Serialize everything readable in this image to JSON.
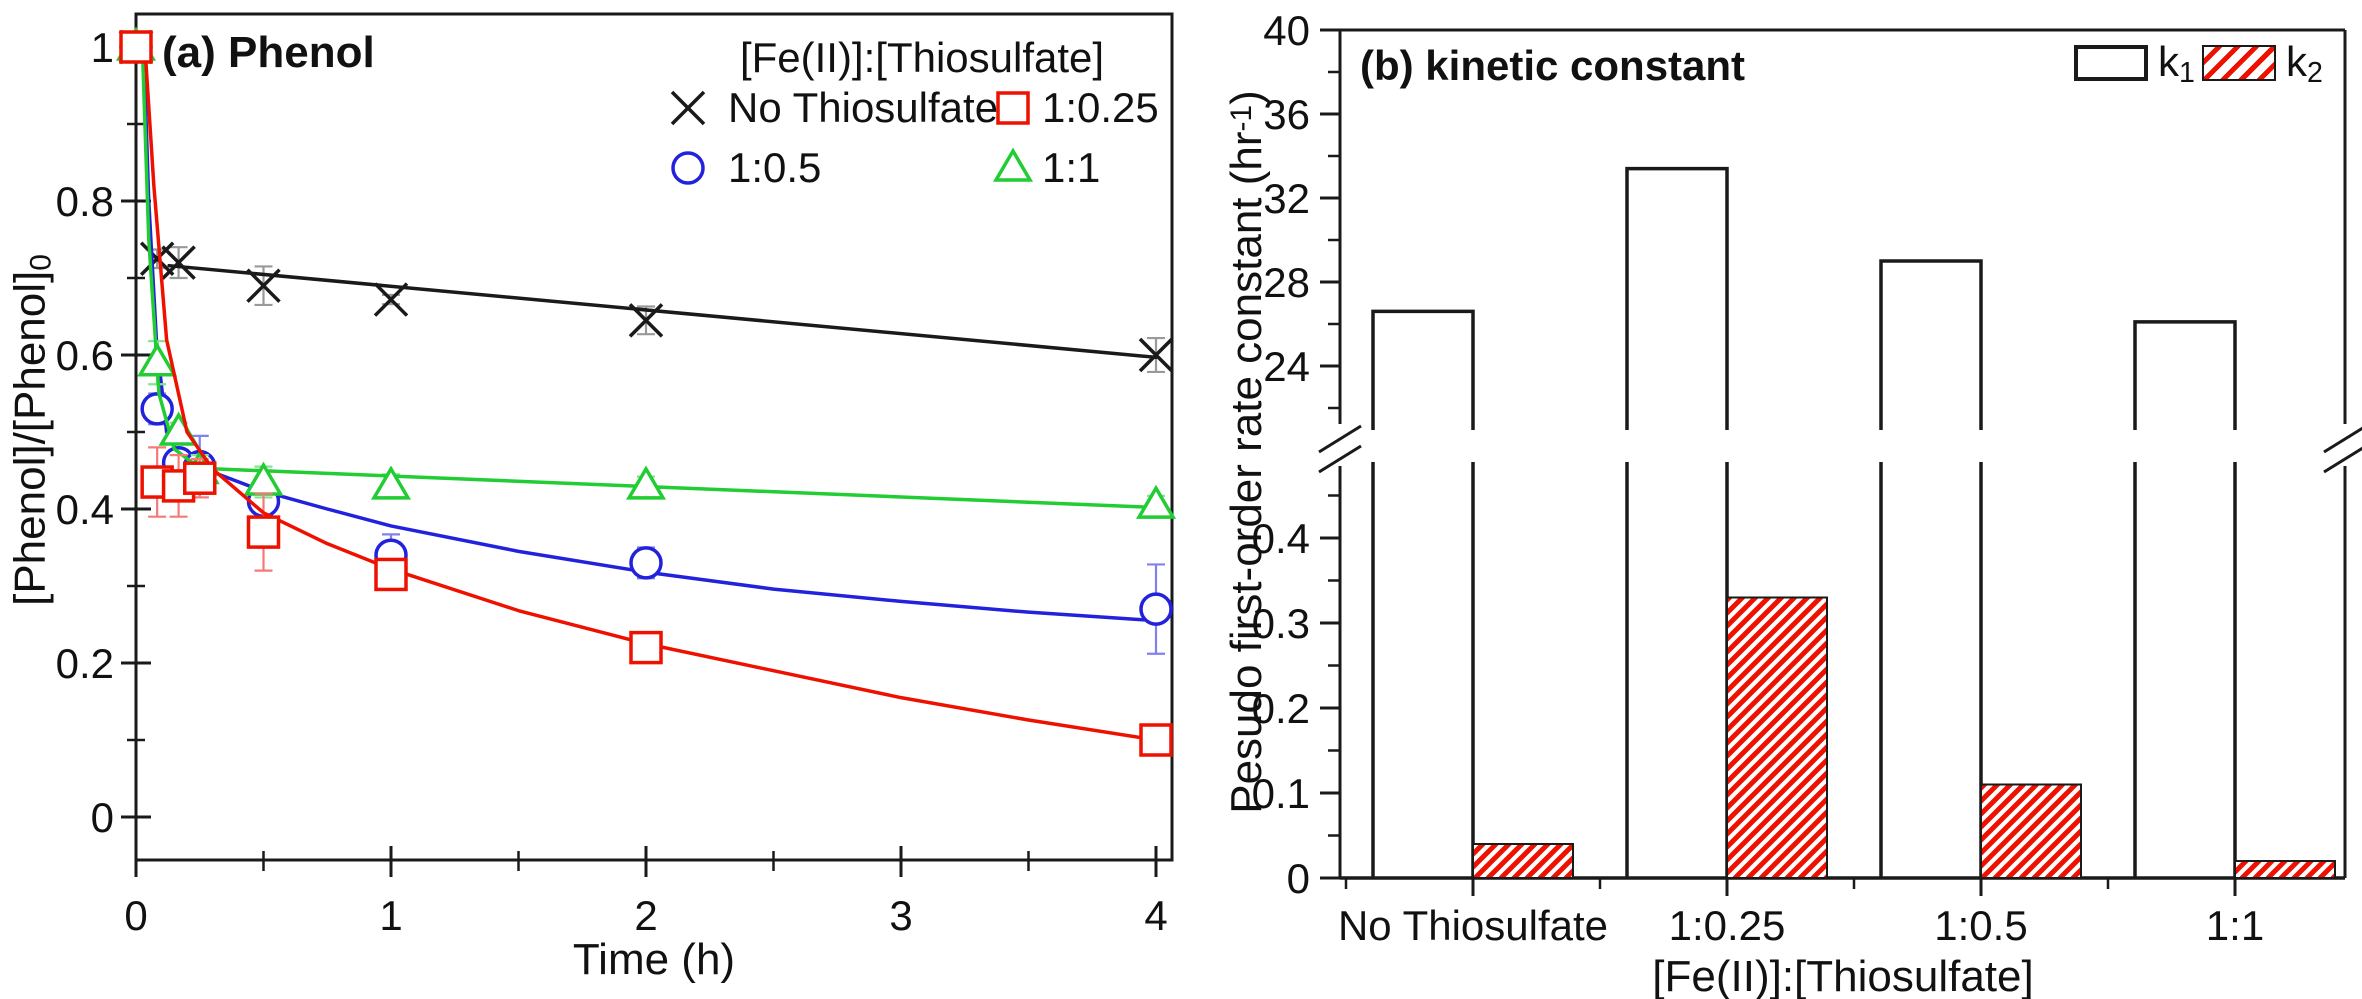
{
  "page": {
    "background": "#ffffff"
  },
  "panel_a": {
    "title": "(a) Phenol",
    "xlabel": "Time (h)",
    "ylabel_pre": "[Phenol]/[Phenol]",
    "ylabel_sub": "0",
    "legend": {
      "title": "[Fe(II)]:[Thiosulfate]",
      "items": [
        {
          "label": "No Thiosulfate",
          "marker": "x-cross",
          "color": "#1a1a1a"
        },
        {
          "label": "1:0.25",
          "marker": "square",
          "color": "#ee1100"
        },
        {
          "label": "1:0.5",
          "marker": "circle",
          "color": "#2222dd"
        },
        {
          "label": "1:1",
          "marker": "triangle",
          "color": "#22cc33"
        }
      ]
    }
  },
  "panel_b": {
    "title": "(b) kinetic constant",
    "xlabel": "[Fe(II)]:[Thiosulfate]",
    "ylabel_pre": "Pesudo first-order rate constant (hr",
    "ylabel_sup": "-1",
    "ylabel_post": ")",
    "legend": [
      {
        "label_pre": "k",
        "label_sub": "1",
        "style": "open"
      },
      {
        "label_pre": "k",
        "label_sub": "2",
        "style": "hatched"
      }
    ]
  },
  "chart_data": [
    {
      "type": "line",
      "title": "(a) Phenol",
      "xlabel": "Time (h)",
      "ylabel": "[Phenol]/[Phenol]_0",
      "xlim": [
        -0.08,
        4.08
      ],
      "ylim": [
        -0.056,
        1.043
      ],
      "xticks": [
        0,
        1,
        2,
        3,
        4
      ],
      "xticks_minor": [
        0.5,
        1.5,
        2.5,
        3.5
      ],
      "yticks": [
        0,
        0.2,
        0.4,
        0.6,
        0.8,
        1
      ],
      "ytick_labels": [
        "0",
        "0.2",
        "0.4",
        "0.6",
        "0.8",
        "1"
      ],
      "yticks_minor": [
        0.1,
        0.3,
        0.5,
        0.7,
        0.9
      ],
      "legend_title": "[Fe(II)]:[Thiosulfate]",
      "legend_position": "top-center-right",
      "grid": false,
      "series": [
        {
          "name": "No Thiosulfate",
          "marker": "x-cross",
          "color": "#1a1a1a",
          "err_color": "#999999",
          "x": [
            0,
            0.083,
            0.167,
            0.5,
            1,
            2,
            4
          ],
          "y": [
            1.0,
            0.725,
            0.72,
            0.69,
            0.672,
            0.645,
            0.6
          ],
          "yerr": [
            0,
            0.012,
            0.02,
            0.025,
            0.006,
            0.018,
            0.022
          ],
          "fit": [
            [
              0.13,
              0.716
            ],
            [
              4,
              0.597
            ]
          ]
        },
        {
          "name": "1:0.25",
          "marker": "square",
          "color": "#ee1100",
          "err_color": "#f47a7a",
          "x": [
            0,
            0.083,
            0.167,
            0.25,
            0.5,
            1,
            2,
            4
          ],
          "y": [
            1.0,
            0.435,
            0.43,
            0.44,
            0.37,
            0.315,
            0.22,
            0.1
          ],
          "yerr": [
            0,
            0.045,
            0.04,
            0.025,
            0.05,
            0.012,
            0.012,
            0.012
          ],
          "fit": [
            [
              0.035,
              1.0
            ],
            [
              0.07,
              0.82
            ],
            [
              0.12,
              0.62
            ],
            [
              0.2,
              0.5
            ],
            [
              0.3,
              0.452
            ],
            [
              0.5,
              0.395
            ],
            [
              0.75,
              0.355
            ],
            [
              1,
              0.322
            ],
            [
              1.5,
              0.268
            ],
            [
              2,
              0.225
            ],
            [
              2.5,
              0.19
            ],
            [
              3,
              0.155
            ],
            [
              3.5,
              0.126
            ],
            [
              4,
              0.1
            ]
          ]
        },
        {
          "name": "1:0.5",
          "marker": "circle",
          "color": "#2222dd",
          "err_color": "#8080ee",
          "x": [
            0,
            0.083,
            0.167,
            0.25,
            0.5,
            1,
            2,
            4
          ],
          "y": [
            1.0,
            0.53,
            0.46,
            0.455,
            0.41,
            0.34,
            0.33,
            0.27
          ],
          "yerr": [
            0,
            0.02,
            0.015,
            0.04,
            0.03,
            0.027,
            0.02,
            0.058
          ],
          "fit": [
            [
              0.03,
              1.0
            ],
            [
              0.05,
              0.8
            ],
            [
              0.08,
              0.62
            ],
            [
              0.12,
              0.5
            ],
            [
              0.18,
              0.462
            ],
            [
              0.3,
              0.448
            ],
            [
              0.5,
              0.423
            ],
            [
              0.75,
              0.4
            ],
            [
              1,
              0.378
            ],
            [
              1.5,
              0.345
            ],
            [
              2,
              0.318
            ],
            [
              2.5,
              0.296
            ],
            [
              3,
              0.28
            ],
            [
              3.5,
              0.266
            ],
            [
              4,
              0.255
            ]
          ]
        },
        {
          "name": "1:1",
          "marker": "triangle",
          "color": "#22cc33",
          "err_color": "#85e292",
          "x": [
            0,
            0.083,
            0.167,
            0.25,
            0.5,
            1,
            2,
            4
          ],
          "y": [
            1.0,
            0.59,
            0.5,
            0.45,
            0.435,
            0.43,
            0.43,
            0.405
          ],
          "yerr": [
            0,
            0.028,
            0.012,
            0.02,
            0.02,
            0.015,
            0.012,
            0.012
          ],
          "fit": [
            [
              0.025,
              1.0
            ],
            [
              0.05,
              0.75
            ],
            [
              0.09,
              0.55
            ],
            [
              0.15,
              0.478
            ],
            [
              0.25,
              0.453
            ],
            [
              4,
              0.402
            ]
          ]
        }
      ]
    },
    {
      "type": "bar",
      "title": "(b) kinetic constant",
      "xlabel": "[Fe(II)]:[Thiosulfate]",
      "ylabel": "Pesudo first-order rate constant (hr^-1)",
      "categories": [
        "No Thiosulfate",
        "1:0.25",
        "1:0.5",
        "1:1"
      ],
      "series": [
        {
          "name": "k_1",
          "values": [
            26.6,
            33.4,
            29.0,
            26.1
          ],
          "style": "open",
          "fill": "#ffffff",
          "edge": "#1a1a1a"
        },
        {
          "name": "k_2",
          "values": [
            0.04,
            0.33,
            0.11,
            0.02
          ],
          "style": "hatched",
          "hatch_color": "#ee1100",
          "edge": "#1a1a1a"
        }
      ],
      "broken_y_axis": {
        "top": {
          "range": [
            21.5,
            40
          ],
          "ticks": [
            24,
            28,
            32,
            36,
            40
          ],
          "tick_labels": [
            "24",
            "28",
            "32",
            "36",
            "40"
          ],
          "minor": [
            22,
            26,
            30,
            34,
            38
          ]
        },
        "bottom": {
          "range": [
            0,
            0.48
          ],
          "ticks": [
            0,
            0.1,
            0.2,
            0.3,
            0.4
          ],
          "tick_labels": [
            "0",
            "0.1",
            "0.2",
            "0.3",
            "0.4"
          ],
          "minor": [
            0.05,
            0.15,
            0.25,
            0.35,
            0.45
          ]
        }
      },
      "grid": false,
      "legend_position": "top-right"
    }
  ]
}
